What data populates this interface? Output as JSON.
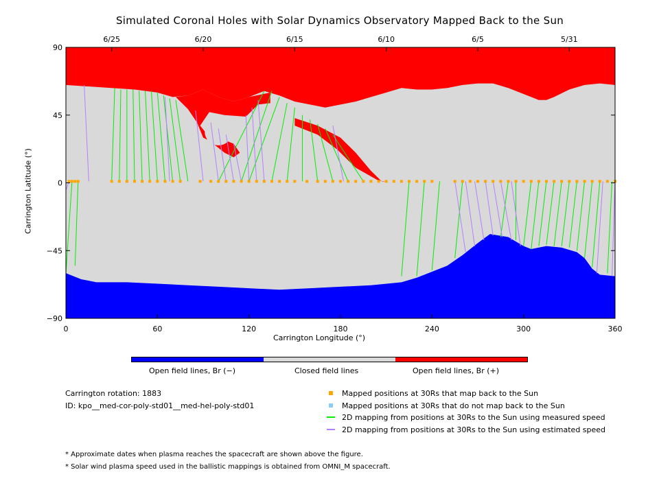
{
  "title": "Simulated Coronal Holes with Solar Dynamics Observatory Mapped Back to the Sun",
  "colors": {
    "open_negative": "#0000ff",
    "closed": "#d9d9d9",
    "open_positive": "#ff0000",
    "mapped_sun": "#ffa500",
    "not_mapped": "#87cefa",
    "measured_speed": "#00ee00",
    "estimated_speed": "#b380ff"
  },
  "colorbar": {
    "neg_label": "Open field lines, Br (−)",
    "closed_label": "Closed field lines",
    "pos_label": "Open field lines, Br (+)"
  },
  "info": {
    "rotation": "Carrington rotation: 1883",
    "id": "ID: kpo__med-cor-poly-std01__med-hel-poly-std01"
  },
  "legend": {
    "mapped": "Mapped positions at 30Rs that map back to the Sun",
    "not_mapped": "Mapped positions at 30Rs that do not map back to the Sun",
    "measured": "2D mapping from positions at 30Rs to the Sun using measured speed",
    "estimated": "2D mapping from positions at 30Rs to the Sun using estimated speed"
  },
  "notes": {
    "note1": "* Approximate dates when plasma reaches the spacecraft are shown above the figure.",
    "note2": "* Solar wind plasma speed used in the ballistic mappings is obtained from OMNI_M spacecraft."
  },
  "chart_data": {
    "type": "area",
    "title": "Simulated Coronal Holes with Solar Dynamics Observatory Mapped Back to the Sun",
    "xlabel": "Carrington Longitude (°)",
    "ylabel": "Carrington Latitude (°)",
    "xlim": [
      0,
      360
    ],
    "ylim": [
      -90,
      90
    ],
    "x_ticks": [
      0,
      60,
      120,
      180,
      240,
      300,
      360
    ],
    "y_ticks": [
      -90,
      -45,
      0,
      45,
      90
    ],
    "y_tick_labels": [
      "−90",
      "−45",
      "0",
      "45",
      "90"
    ],
    "top_axis_dates": [
      {
        "label": "6/25",
        "lon": 30
      },
      {
        "label": "6/20",
        "lon": 90
      },
      {
        "label": "6/15",
        "lon": 150
      },
      {
        "label": "6/10",
        "lon": 210
      },
      {
        "label": "6/5",
        "lon": 270
      },
      {
        "label": "5/31",
        "lon": 330
      }
    ],
    "north_closed_boundary": [
      [
        0,
        65
      ],
      [
        15,
        64
      ],
      [
        30,
        63
      ],
      [
        45,
        62
      ],
      [
        60,
        60
      ],
      [
        70,
        57
      ],
      [
        80,
        58
      ],
      [
        90,
        62
      ],
      [
        100,
        57
      ],
      [
        110,
        54
      ],
      [
        120,
        57
      ],
      [
        130,
        61
      ],
      [
        140,
        58
      ],
      [
        150,
        54
      ],
      [
        160,
        52
      ],
      [
        170,
        50
      ],
      [
        180,
        52
      ],
      [
        190,
        54
      ],
      [
        200,
        57
      ],
      [
        210,
        60
      ],
      [
        220,
        63
      ],
      [
        230,
        62
      ],
      [
        240,
        62
      ],
      [
        250,
        63
      ],
      [
        260,
        65
      ],
      [
        270,
        66
      ],
      [
        280,
        66
      ],
      [
        290,
        63
      ],
      [
        300,
        59
      ],
      [
        310,
        55
      ],
      [
        315,
        55
      ],
      [
        320,
        57
      ],
      [
        330,
        62
      ],
      [
        340,
        65
      ],
      [
        350,
        66
      ],
      [
        360,
        65
      ]
    ],
    "south_closed_boundary": [
      [
        0,
        -60
      ],
      [
        10,
        -64
      ],
      [
        20,
        -66
      ],
      [
        40,
        -66
      ],
      [
        60,
        -67
      ],
      [
        80,
        -68
      ],
      [
        100,
        -69
      ],
      [
        120,
        -70
      ],
      [
        140,
        -71
      ],
      [
        160,
        -70
      ],
      [
        180,
        -69
      ],
      [
        200,
        -68
      ],
      [
        220,
        -66
      ],
      [
        230,
        -63
      ],
      [
        240,
        -59
      ],
      [
        250,
        -55
      ],
      [
        260,
        -48
      ],
      [
        270,
        -40
      ],
      [
        278,
        -34
      ],
      [
        290,
        -36
      ],
      [
        300,
        -42
      ],
      [
        305,
        -44
      ],
      [
        315,
        -42
      ],
      [
        325,
        -43
      ],
      [
        335,
        -46
      ],
      [
        340,
        -50
      ],
      [
        345,
        -57
      ],
      [
        350,
        -61
      ],
      [
        360,
        -62
      ]
    ],
    "red_finger": [
      [
        72,
        57
      ],
      [
        80,
        49
      ],
      [
        86,
        40
      ],
      [
        90,
        30
      ],
      [
        94,
        28
      ],
      [
        104,
        20
      ],
      [
        110,
        17
      ],
      [
        114,
        20
      ],
      [
        110,
        26
      ],
      [
        100,
        30
      ],
      [
        92,
        33
      ],
      [
        88,
        38
      ],
      [
        94,
        47
      ],
      [
        104,
        45
      ],
      [
        118,
        44
      ],
      [
        126,
        52
      ],
      [
        134,
        53
      ],
      [
        134,
        60
      ],
      [
        120,
        57
      ],
      [
        110,
        54
      ],
      [
        100,
        57
      ],
      [
        90,
        62
      ],
      [
        80,
        58
      ]
    ],
    "red_filament": [
      [
        150,
        43
      ],
      [
        165,
        38
      ],
      [
        180,
        30
      ],
      [
        190,
        20
      ],
      [
        200,
        8
      ],
      [
        207,
        1
      ],
      [
        212,
        0
      ],
      [
        204,
        2
      ],
      [
        190,
        10
      ],
      [
        178,
        22
      ],
      [
        165,
        32
      ],
      [
        150,
        38
      ]
    ],
    "mapped_points_lat": 1,
    "mapped_points_lon": [
      2,
      4,
      6,
      8,
      30,
      35,
      40,
      45,
      50,
      55,
      60,
      65,
      70,
      75,
      88,
      95,
      100,
      105,
      110,
      115,
      120,
      125,
      130,
      135,
      140,
      145,
      150,
      158,
      165,
      170,
      175,
      180,
      185,
      190,
      195,
      200,
      205,
      210,
      215,
      220,
      225,
      230,
      235,
      240,
      255,
      260,
      265,
      270,
      275,
      280,
      285,
      290,
      295,
      300,
      305,
      310,
      315,
      320,
      325,
      330,
      335,
      340,
      345,
      350,
      355,
      360
    ],
    "measured_lines": [
      [
        0,
        -60,
        4,
        1
      ],
      [
        6,
        -55,
        8,
        1
      ],
      [
        32,
        63,
        30,
        1
      ],
      [
        36,
        62,
        35,
        1
      ],
      [
        40,
        62,
        40,
        1
      ],
      [
        44,
        62,
        45,
        1
      ],
      [
        48,
        61,
        50,
        1
      ],
      [
        52,
        61,
        55,
        1
      ],
      [
        56,
        61,
        60,
        1
      ],
      [
        60,
        60,
        65,
        1
      ],
      [
        64,
        58,
        70,
        1
      ],
      [
        68,
        56,
        75,
        1
      ],
      [
        72,
        55,
        80,
        1
      ],
      [
        130,
        61,
        100,
        1
      ],
      [
        135,
        61,
        115,
        1
      ],
      [
        140,
        57,
        120,
        1
      ],
      [
        145,
        53,
        135,
        1
      ],
      [
        150,
        50,
        145,
        1
      ],
      [
        155,
        45,
        155,
        1
      ],
      [
        160,
        42,
        165,
        1
      ],
      [
        165,
        39,
        175,
        1
      ],
      [
        170,
        36,
        185,
        1
      ],
      [
        175,
        32,
        195,
        1
      ],
      [
        220,
        -62,
        225,
        1
      ],
      [
        230,
        -62,
        235,
        1
      ],
      [
        240,
        -58,
        245,
        1
      ],
      [
        255,
        -50,
        260,
        1
      ],
      [
        285,
        -36,
        290,
        1
      ],
      [
        295,
        -38,
        295,
        1
      ],
      [
        300,
        -42,
        305,
        1
      ],
      [
        305,
        -44,
        310,
        1
      ],
      [
        310,
        -42,
        315,
        1
      ],
      [
        315,
        -41,
        320,
        1
      ],
      [
        320,
        -42,
        325,
        1
      ],
      [
        325,
        -42,
        330,
        1
      ],
      [
        330,
        -43,
        335,
        1
      ],
      [
        335,
        -45,
        340,
        1
      ],
      [
        340,
        -50,
        345,
        1
      ],
      [
        345,
        -56,
        350,
        1
      ],
      [
        355,
        -60,
        358,
        1
      ]
    ],
    "estimated_lines": [
      [
        12,
        65,
        15,
        1
      ],
      [
        65,
        57,
        68,
        1
      ],
      [
        85,
        48,
        90,
        1
      ],
      [
        95,
        40,
        100,
        1
      ],
      [
        100,
        36,
        105,
        1
      ],
      [
        105,
        32,
        110,
        1
      ],
      [
        110,
        26,
        115,
        1
      ],
      [
        118,
        45,
        120,
        1
      ],
      [
        122,
        50,
        125,
        1
      ],
      [
        126,
        55,
        130,
        1
      ],
      [
        175,
        38,
        182,
        1
      ],
      [
        262,
        -46,
        255,
        1
      ],
      [
        268,
        -42,
        262,
        1
      ],
      [
        274,
        -38,
        268,
        1
      ],
      [
        280,
        -35,
        275,
        1
      ],
      [
        286,
        -36,
        280,
        1
      ],
      [
        292,
        -38,
        285,
        1
      ],
      [
        298,
        -42,
        292,
        1
      ],
      [
        348,
        -60,
        352,
        1
      ],
      [
        358,
        -62,
        360,
        1
      ],
      [
        0,
        -5,
        2,
        1
      ]
    ]
  }
}
